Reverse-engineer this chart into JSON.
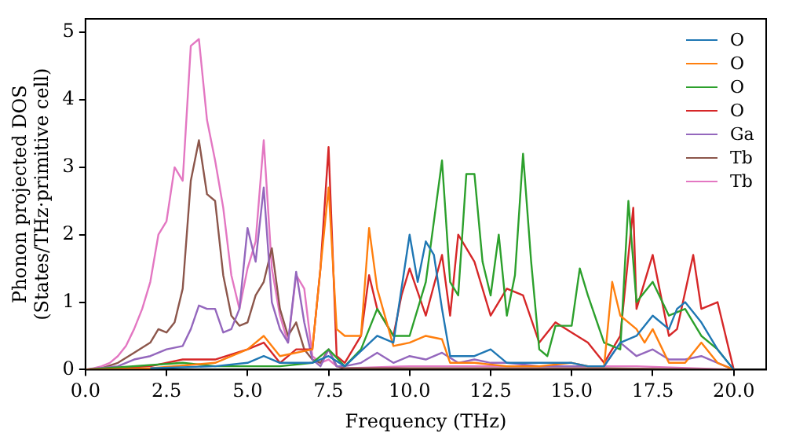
{
  "chart_data": {
    "type": "line",
    "xlabel": "Frequency (THz)",
    "ylabel": "Phonon projected DOS\n(States/THz·primitive cell)",
    "xlim": [
      0,
      21
    ],
    "ylim": [
      0,
      5.2
    ],
    "xticks": [
      {
        "value": 0,
        "label": "0.0"
      },
      {
        "value": 2.5,
        "label": "2.5"
      },
      {
        "value": 5,
        "label": "5.0"
      },
      {
        "value": 7.5,
        "label": "7.5"
      },
      {
        "value": 10,
        "label": "10.0"
      },
      {
        "value": 12.5,
        "label": "12.5"
      },
      {
        "value": 15,
        "label": "15.0"
      },
      {
        "value": 17.5,
        "label": "17.5"
      },
      {
        "value": 20,
        "label": "20.0"
      }
    ],
    "yticks": [
      0,
      1,
      2,
      3,
      4,
      5
    ],
    "grid": false,
    "legend": "top right",
    "marker": "none",
    "line_style": "solid",
    "series": [
      {
        "name": "O",
        "color": "#1f77b4",
        "x": [
          2,
          4,
          5,
          5.5,
          6,
          7,
          7.5,
          8,
          9,
          9.5,
          10,
          10.25,
          10.5,
          10.75,
          11,
          11.25,
          12,
          12.5,
          13,
          14,
          15,
          15.5,
          16,
          16.5,
          17,
          17.5,
          18,
          18.25,
          18.5,
          19,
          19.5,
          20
        ],
        "values": [
          0.02,
          0.05,
          0.1,
          0.2,
          0.1,
          0.1,
          0.2,
          0.05,
          0.5,
          0.4,
          2.0,
          1.3,
          1.9,
          1.7,
          0.9,
          0.2,
          0.2,
          0.3,
          0.1,
          0.1,
          0.1,
          0.05,
          0.05,
          0.4,
          0.5,
          0.8,
          0.6,
          0.9,
          1.0,
          0.7,
          0.3,
          0
        ]
      },
      {
        "name": "O",
        "color": "#ff7f0e",
        "x": [
          0,
          2,
          4,
          5,
          5.5,
          6,
          7,
          7.5,
          7.75,
          8,
          8.5,
          8.75,
          9,
          9.5,
          10,
          10.5,
          11,
          11.25,
          12,
          13,
          14,
          15,
          15.5,
          16,
          16.25,
          16.5,
          17,
          17.25,
          17.5,
          18,
          18.5,
          19,
          19.5,
          20
        ],
        "values": [
          0,
          0.02,
          0.1,
          0.3,
          0.5,
          0.2,
          0.3,
          2.7,
          0.6,
          0.5,
          0.5,
          2.1,
          1.2,
          0.35,
          0.4,
          0.5,
          0.45,
          0.1,
          0.1,
          0.05,
          0.05,
          0.1,
          0.05,
          0.05,
          1.3,
          0.8,
          0.6,
          0.4,
          0.6,
          0.1,
          0.1,
          0.4,
          0.1,
          0
        ]
      },
      {
        "name": "O",
        "color": "#2ca02c",
        "x": [
          0,
          3,
          4,
          6,
          7,
          7.5,
          8,
          8.5,
          9,
          9.5,
          10,
          10.5,
          11,
          11.25,
          11.5,
          11.75,
          12,
          12.25,
          12.5,
          12.75,
          13,
          13.25,
          13.5,
          13.75,
          14,
          14.25,
          14.5,
          15,
          15.25,
          15.5,
          16,
          16.5,
          16.75,
          17,
          17.5,
          18,
          18.5,
          19,
          19.5,
          20
        ],
        "values": [
          0,
          0.1,
          0.05,
          0.05,
          0.1,
          0.3,
          0.05,
          0.3,
          0.9,
          0.5,
          0.5,
          1.3,
          3.1,
          1.3,
          1.1,
          2.9,
          2.9,
          1.6,
          1.1,
          2.0,
          0.8,
          1.4,
          3.2,
          1.6,
          0.3,
          0.2,
          0.65,
          0.65,
          1.5,
          1.1,
          0.4,
          0.3,
          2.5,
          1.0,
          1.3,
          0.8,
          0.9,
          0.5,
          0.3,
          0
        ]
      },
      {
        "name": "O",
        "color": "#d62728",
        "x": [
          0,
          2,
          3,
          4,
          5,
          5.5,
          6,
          6.5,
          7,
          7.25,
          7.5,
          7.75,
          8,
          8.5,
          8.75,
          9,
          9.5,
          9.75,
          10,
          10.5,
          11,
          11.25,
          11.5,
          12,
          12.5,
          13,
          13.5,
          14,
          14.5,
          15,
          15.5,
          16,
          16.5,
          16.9,
          17,
          17.5,
          18,
          18.25,
          18.75,
          19,
          19.5,
          20
        ],
        "values": [
          0,
          0.05,
          0.15,
          0.15,
          0.3,
          0.4,
          0.1,
          0.3,
          0.3,
          1.5,
          3.3,
          0.2,
          0.1,
          0.5,
          1.4,
          0.9,
          0.5,
          1.1,
          1.5,
          0.8,
          1.7,
          0.8,
          2.0,
          1.6,
          0.8,
          1.2,
          1.1,
          0.4,
          0.7,
          0.55,
          0.4,
          0.1,
          0.5,
          2.4,
          0.9,
          1.7,
          0.5,
          0.6,
          1.7,
          0.9,
          1.0,
          0
        ]
      },
      {
        "name": "Ga",
        "color": "#9467bd",
        "x": [
          0,
          1,
          1.5,
          2,
          2.5,
          3,
          3.25,
          3.5,
          3.75,
          4,
          4.25,
          4.5,
          4.75,
          5,
          5.25,
          5.5,
          5.75,
          6,
          6.25,
          6.5,
          6.75,
          7,
          7.25,
          7.5,
          7.75,
          8,
          8.5,
          9,
          9.5,
          10,
          10.5,
          11,
          11.5,
          12,
          12.5,
          13,
          14,
          15,
          16,
          16.5,
          17,
          17.5,
          18,
          18.5,
          19,
          19.5,
          20
        ],
        "values": [
          0,
          0.05,
          0.15,
          0.2,
          0.3,
          0.35,
          0.6,
          0.95,
          0.9,
          0.9,
          0.55,
          0.6,
          0.9,
          2.1,
          1.6,
          2.7,
          1.0,
          0.6,
          0.4,
          1.45,
          0.7,
          0.15,
          0.05,
          0.3,
          0.05,
          0.05,
          0.1,
          0.25,
          0.1,
          0.2,
          0.15,
          0.25,
          0.1,
          0.15,
          0.1,
          0.1,
          0.05,
          0.05,
          0.05,
          0.4,
          0.2,
          0.3,
          0.15,
          0.15,
          0.2,
          0.1,
          0
        ]
      },
      {
        "name": "Tb",
        "color": "#8c564b",
        "x": [
          0,
          0.5,
          1,
          1.5,
          2,
          2.25,
          2.5,
          2.75,
          3,
          3.25,
          3.5,
          3.75,
          4,
          4.25,
          4.5,
          4.75,
          5,
          5.25,
          5.5,
          5.75,
          6,
          6.25,
          6.5,
          6.75,
          7,
          7.25,
          7.5,
          7.75,
          8,
          12,
          16,
          20
        ],
        "values": [
          0,
          0.02,
          0.1,
          0.25,
          0.4,
          0.6,
          0.55,
          0.7,
          1.2,
          2.8,
          3.4,
          2.6,
          2.5,
          1.4,
          0.8,
          0.65,
          0.7,
          1.1,
          1.3,
          1.8,
          0.9,
          0.5,
          0.7,
          0.3,
          0.15,
          0.1,
          0.3,
          0.05,
          0.02,
          0.02,
          0.02,
          0
        ]
      },
      {
        "name": "Tb",
        "color": "#e377c2",
        "x": [
          0,
          0.25,
          0.5,
          0.75,
          1,
          1.25,
          1.5,
          1.75,
          2,
          2.25,
          2.5,
          2.75,
          3,
          3.25,
          3.5,
          3.75,
          4,
          4.25,
          4.5,
          4.75,
          5,
          5.25,
          5.5,
          5.75,
          6,
          6.25,
          6.5,
          6.75,
          7,
          7.25,
          7.5,
          7.75,
          8,
          10,
          12,
          14,
          17,
          20
        ],
        "values": [
          0,
          0.02,
          0.05,
          0.1,
          0.2,
          0.35,
          0.6,
          0.9,
          1.3,
          2.0,
          2.2,
          3.0,
          2.8,
          4.8,
          4.9,
          3.7,
          3.1,
          2.4,
          1.4,
          0.9,
          1.5,
          1.9,
          3.4,
          1.5,
          0.8,
          0.4,
          1.4,
          1.2,
          0.2,
          0.1,
          0.15,
          0.05,
          0.02,
          0.05,
          0.05,
          0.05,
          0.05,
          0
        ]
      }
    ]
  }
}
